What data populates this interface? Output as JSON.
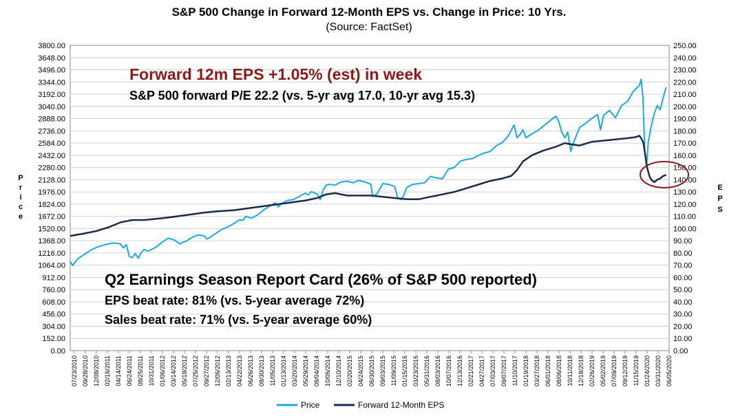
{
  "header": {
    "title": "S&P 500 Change in Forward 12-Month EPS vs. Change in Price: 10 Yrs.",
    "subtitle": "(Source: FactSet)"
  },
  "annotations": {
    "headline": "Forward 12m EPS +1.05% (est) in week",
    "pe_line": "S&P 500 forward P/E 22.2 (vs. 5-yr avg 17.0, 10-yr avg 15.3)",
    "report_title": "Q2 Earnings Season Report Card (26% of S&P 500 reported)",
    "eps_beat": "EPS beat rate: 81% (vs. 5-year average 72%)",
    "sales_beat": "Sales beat rate: 71% (vs. 5-year average 60%)"
  },
  "colors": {
    "price": "#1ca8e4",
    "eps": "#1c2a4a",
    "circle": "#8b1a1a",
    "headline": "#8b1a1a",
    "grid": "#d0d0d0"
  },
  "chart_data": {
    "type": "line",
    "title": "S&P 500 Change in Forward 12-Month EPS vs. Change in Price: 10 Yrs.",
    "subtitle": "(Source: FactSet)",
    "left_axis": {
      "label": "Price",
      "range": [
        0,
        3800
      ],
      "ticks": [
        "3800.00",
        "3648.00",
        "3496.00",
        "3344.00",
        "3192.00",
        "3040.00",
        "2888.00",
        "2736.00",
        "2584.00",
        "2432.00",
        "2280.00",
        "2128.00",
        "1976.00",
        "1824.00",
        "1672.00",
        "1520.00",
        "1368.00",
        "1216.00",
        "1064.00",
        "912.00",
        "760.00",
        "608.00",
        "456.00",
        "304.00",
        "152.00",
        "0.00"
      ]
    },
    "right_axis": {
      "label": "EPS",
      "range": [
        0,
        250
      ],
      "ticks": [
        "250.00",
        "240.00",
        "230.00",
        "220.00",
        "210.00",
        "200.00",
        "190.00",
        "180.00",
        "170.00",
        "160.00",
        "150.00",
        "140.00",
        "130.00",
        "120.00",
        "110.00",
        "100.00",
        "90.00",
        "80.00",
        "70.00",
        "60.00",
        "50.00",
        "40.00",
        "30.00",
        "20.00",
        "10.00",
        "0.00"
      ]
    },
    "x_ticks": [
      "07/23/2010",
      "09/28/2010",
      "12/08/2010",
      "02/16/2011",
      "04/14/2011",
      "06/24/2011",
      "08/25/2011",
      "10/31/2011",
      "01/06/2012",
      "03/14/2012",
      "05/18/2012",
      "07/25/2012",
      "09/27/2012",
      "12/06/2012",
      "02/13/2013",
      "04/22/2013",
      "06/26/2013",
      "08/30/2013",
      "11/05/2013",
      "01/13/2014",
      "03/20/2014",
      "05/29/2014",
      "08/04/2014",
      "10/06/2014",
      "12/10/2014",
      "02/20/2015",
      "04/24/2015",
      "06/30/2015",
      "09/03/2015",
      "11/09/2015",
      "01/15/2016",
      "03/23/2016",
      "05/31/2016",
      "08/03/2016",
      "10/07/2016",
      "12/13/2016",
      "02/21/2017",
      "04/27/2017",
      "07/03/2017",
      "09/07/2017",
      "11/10/2017",
      "01/19/2018",
      "03/27/2018",
      "06/01/2018",
      "08/06/2018",
      "10/11/2018",
      "12/18/2018",
      "02/26/2019",
      "05/02/2019",
      "07/09/2019",
      "09/12/2019",
      "11/15/2019",
      "01/24/2020",
      "03/31/2020",
      "06/05/2020"
    ],
    "legend": [
      "Price",
      "Forward 12-Month EPS"
    ],
    "legend_position": "bottom-center",
    "series": [
      {
        "name": "Price",
        "axis": "left",
        "x": [
          2010.56,
          2010.6,
          2010.65,
          2010.7,
          2010.8,
          2010.9,
          2011.0,
          2011.1,
          2011.2,
          2011.3,
          2011.4,
          2011.45,
          2011.5,
          2011.55,
          2011.6,
          2011.65,
          2011.7,
          2011.75,
          2011.8,
          2011.85,
          2011.9,
          2012.0,
          2012.1,
          2012.2,
          2012.3,
          2012.4,
          2012.45,
          2012.5,
          2012.6,
          2012.7,
          2012.8,
          2012.85,
          2012.9,
          2013.0,
          2013.1,
          2013.2,
          2013.3,
          2013.4,
          2013.45,
          2013.5,
          2013.6,
          2013.7,
          2013.8,
          2013.9,
          2014.0,
          2014.05,
          2014.1,
          2014.2,
          2014.3,
          2014.4,
          2014.5,
          2014.55,
          2014.6,
          2014.7,
          2014.75,
          2014.8,
          2014.85,
          2014.9,
          2015.0,
          2015.1,
          2015.2,
          2015.3,
          2015.4,
          2015.5,
          2015.6,
          2015.63,
          2015.7,
          2015.8,
          2015.9,
          2016.0,
          2016.05,
          2016.1,
          2016.15,
          2016.2,
          2016.3,
          2016.4,
          2016.5,
          2016.6,
          2016.7,
          2016.8,
          2016.85,
          2016.9,
          2017.0,
          2017.1,
          2017.2,
          2017.3,
          2017.4,
          2017.5,
          2017.6,
          2017.7,
          2017.8,
          2017.9,
          2018.0,
          2018.05,
          2018.1,
          2018.15,
          2018.2,
          2018.3,
          2018.4,
          2018.5,
          2018.6,
          2018.7,
          2018.75,
          2018.8,
          2018.85,
          2018.9,
          2018.95,
          2019.0,
          2019.1,
          2019.2,
          2019.3,
          2019.4,
          2019.45,
          2019.5,
          2019.6,
          2019.7,
          2019.8,
          2019.9,
          2020.0,
          2020.1,
          2020.13,
          2020.16,
          2020.19,
          2020.22,
          2020.25,
          2020.3,
          2020.35,
          2020.4,
          2020.45,
          2020.5,
          2020.55
        ],
        "values": [
          1110,
          1060,
          1110,
          1150,
          1200,
          1250,
          1285,
          1310,
          1330,
          1340,
          1330,
          1280,
          1320,
          1170,
          1160,
          1210,
          1150,
          1220,
          1260,
          1240,
          1250,
          1290,
          1350,
          1400,
          1380,
          1330,
          1350,
          1360,
          1410,
          1440,
          1430,
          1390,
          1410,
          1460,
          1510,
          1540,
          1580,
          1630,
          1620,
          1670,
          1650,
          1690,
          1750,
          1800,
          1840,
          1790,
          1830,
          1870,
          1880,
          1920,
          1960,
          1940,
          1980,
          1950,
          1880,
          2000,
          2060,
          2070,
          2060,
          2100,
          2110,
          2090,
          2120,
          2100,
          2070,
          1920,
          1950,
          2080,
          2070,
          2040,
          1900,
          1880,
          1930,
          2030,
          2070,
          2080,
          2090,
          2170,
          2150,
          2140,
          2200,
          2260,
          2280,
          2360,
          2380,
          2390,
          2430,
          2460,
          2480,
          2550,
          2590,
          2670,
          2810,
          2650,
          2690,
          2750,
          2650,
          2700,
          2740,
          2800,
          2860,
          2920,
          2850,
          2720,
          2650,
          2720,
          2480,
          2600,
          2780,
          2830,
          2890,
          2940,
          2750,
          2930,
          2990,
          2900,
          3050,
          3100,
          3230,
          3300,
          3380,
          3150,
          2500,
          2300,
          2600,
          2800,
          2950,
          3050,
          3000,
          3150,
          3280
        ]
      },
      {
        "name": "Forward 12-Month EPS",
        "axis": "right",
        "x": [
          2010.56,
          2010.8,
          2011.0,
          2011.2,
          2011.4,
          2011.5,
          2011.6,
          2011.8,
          2012.0,
          2012.2,
          2012.5,
          2012.8,
          2013.0,
          2013.3,
          2013.6,
          2013.9,
          2014.2,
          2014.5,
          2014.7,
          2014.85,
          2015.0,
          2015.2,
          2015.4,
          2015.6,
          2015.8,
          2016.0,
          2016.2,
          2016.4,
          2016.6,
          2016.8,
          2017.0,
          2017.2,
          2017.4,
          2017.6,
          2017.8,
          2017.95,
          2018.05,
          2018.15,
          2018.3,
          2018.5,
          2018.7,
          2018.85,
          2018.95,
          2019.1,
          2019.3,
          2019.5,
          2019.7,
          2019.9,
          2020.05,
          2020.1,
          2020.13,
          2020.17,
          2020.2,
          2020.23,
          2020.27,
          2020.3,
          2020.35,
          2020.4,
          2020.45,
          2020.5,
          2020.55
        ],
        "values": [
          94,
          96,
          98,
          101,
          105,
          106,
          107,
          107,
          108,
          109,
          111,
          113,
          114,
          115,
          117,
          119,
          121,
          123,
          125,
          128,
          129,
          127,
          127,
          127,
          126,
          125,
          124,
          124,
          126,
          128,
          130,
          133,
          136,
          139,
          141,
          143,
          148,
          155,
          160,
          164,
          167,
          170,
          169,
          168,
          171,
          172,
          173,
          174,
          175,
          176,
          174,
          170,
          160,
          150,
          143,
          140,
          138,
          140,
          141,
          143,
          144
        ]
      }
    ]
  }
}
